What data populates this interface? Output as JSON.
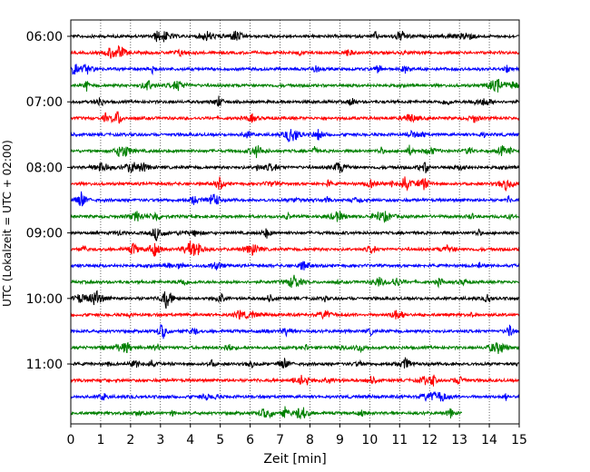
{
  "chart_data": {
    "type": "line",
    "title": "",
    "xlabel": "Zeit  [min]",
    "ylabel": "UTC (Lokalzeit = UTC + 02:00)",
    "xlim": [
      0,
      15
    ],
    "x_ticks": [
      0,
      1,
      2,
      3,
      4,
      5,
      6,
      7,
      8,
      9,
      10,
      11,
      12,
      13,
      14,
      15
    ],
    "x_tick_labels": [
      "0",
      "1",
      "2",
      "3",
      "4",
      "5",
      "6",
      "7",
      "8",
      "9",
      "10",
      "11",
      "12",
      "13",
      "14",
      "15"
    ],
    "y_tick_labels": [
      "06:00",
      "07:00",
      "08:00",
      "09:00",
      "10:00",
      "11:00"
    ],
    "y_tick_rows": [
      0,
      4,
      8,
      12,
      16,
      20
    ],
    "vertical_grid": true,
    "grid_style": "dotted",
    "row_minutes": 15,
    "colors": [
      "#000000",
      "#ff0000",
      "#0000ff",
      "#008000"
    ],
    "rows": [
      {
        "start": "06:00",
        "color": "#000000",
        "end_minute": 15
      },
      {
        "start": "06:15",
        "color": "#ff0000",
        "end_minute": 15
      },
      {
        "start": "06:30",
        "color": "#0000ff",
        "end_minute": 15
      },
      {
        "start": "06:45",
        "color": "#008000",
        "end_minute": 15
      },
      {
        "start": "07:00",
        "color": "#000000",
        "end_minute": 15
      },
      {
        "start": "07:15",
        "color": "#ff0000",
        "end_minute": 15
      },
      {
        "start": "07:30",
        "color": "#0000ff",
        "end_minute": 15
      },
      {
        "start": "07:45",
        "color": "#008000",
        "end_minute": 15
      },
      {
        "start": "08:00",
        "color": "#000000",
        "end_minute": 15
      },
      {
        "start": "08:15",
        "color": "#ff0000",
        "end_minute": 15
      },
      {
        "start": "08:30",
        "color": "#0000ff",
        "end_minute": 15
      },
      {
        "start": "08:45",
        "color": "#008000",
        "end_minute": 15
      },
      {
        "start": "09:00",
        "color": "#000000",
        "end_minute": 15
      },
      {
        "start": "09:15",
        "color": "#ff0000",
        "end_minute": 15
      },
      {
        "start": "09:30",
        "color": "#0000ff",
        "end_minute": 15
      },
      {
        "start": "09:45",
        "color": "#008000",
        "end_minute": 15
      },
      {
        "start": "10:00",
        "color": "#000000",
        "end_minute": 15
      },
      {
        "start": "10:15",
        "color": "#ff0000",
        "end_minute": 15
      },
      {
        "start": "10:30",
        "color": "#0000ff",
        "end_minute": 15
      },
      {
        "start": "10:45",
        "color": "#008000",
        "end_minute": 15
      },
      {
        "start": "11:00",
        "color": "#000000",
        "end_minute": 15
      },
      {
        "start": "11:15",
        "color": "#ff0000",
        "end_minute": 15
      },
      {
        "start": "11:30",
        "color": "#0000ff",
        "end_minute": 15
      },
      {
        "start": "11:45",
        "color": "#008000",
        "end_minute": 13.1
      }
    ]
  }
}
